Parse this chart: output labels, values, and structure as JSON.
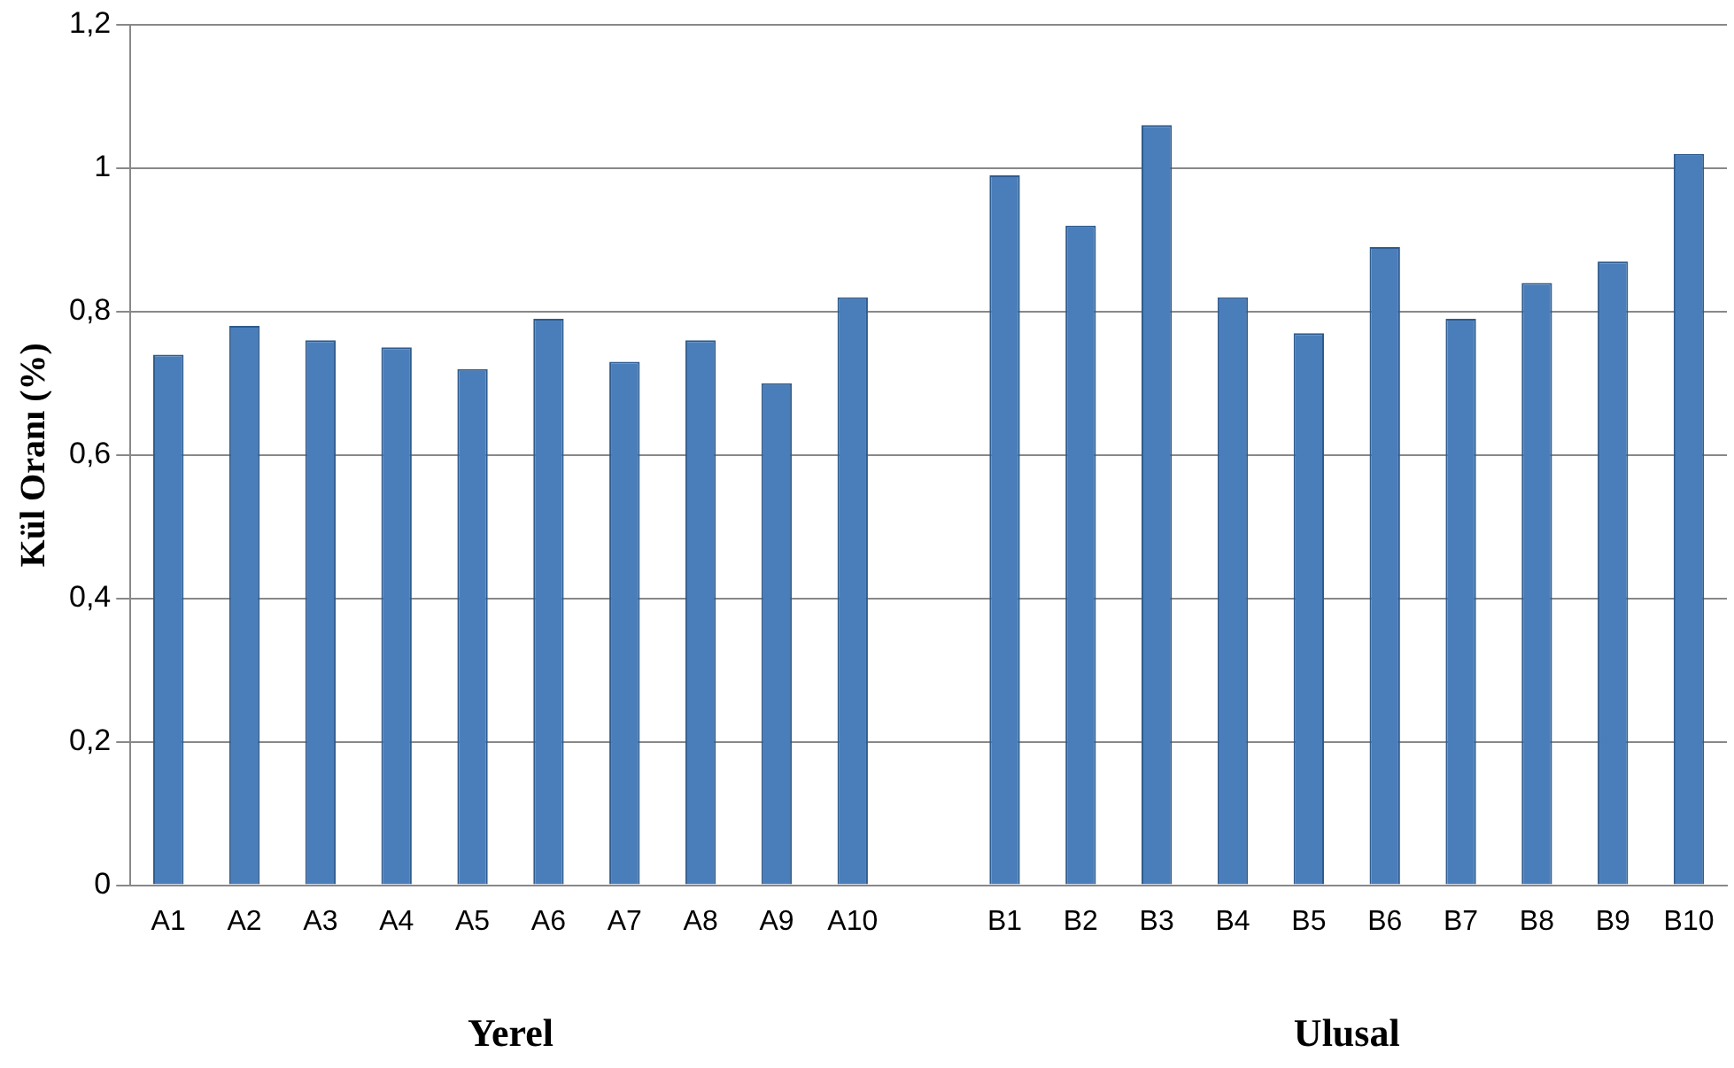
{
  "chart_data": {
    "type": "bar",
    "ylabel": "Kül Oranı (%)",
    "categories": [
      "A1",
      "A2",
      "A3",
      "A4",
      "A5",
      "A6",
      "A7",
      "A8",
      "A9",
      "A10",
      null,
      "B1",
      "B2",
      "B3",
      "B4",
      "B5",
      "B6",
      "B7",
      "B8",
      "B9",
      "B10"
    ],
    "values": [
      0.74,
      0.78,
      0.76,
      0.75,
      0.72,
      0.79,
      0.73,
      0.76,
      0.7,
      0.82,
      null,
      0.99,
      0.92,
      1.06,
      0.82,
      0.77,
      0.89,
      0.79,
      0.84,
      0.87,
      1.02
    ],
    "color": "#4a7ebb",
    "ylim": [
      0,
      1.2
    ],
    "yticks": [
      0,
      {
        "value": 0.2,
        "label": "0,2"
      },
      {
        "value": 0.4,
        "label": "0,4"
      },
      {
        "value": 0.6,
        "label": "0,6"
      },
      {
        "value": 0.8,
        "label": "0,8"
      },
      1,
      {
        "value": 1.2,
        "label": "1,2"
      }
    ],
    "grid": "y",
    "legend": false,
    "annotations": [
      "Yerel",
      "Ulusal"
    ]
  }
}
